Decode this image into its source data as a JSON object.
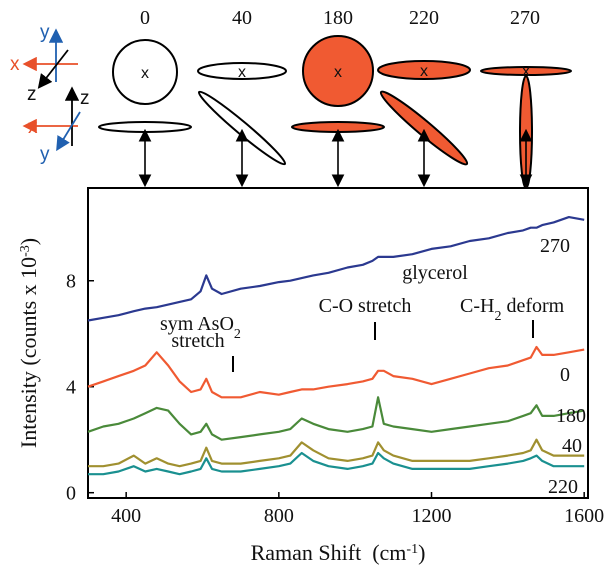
{
  "chart_data": {
    "type": "line",
    "x_label": [
      "Raman Shift  (cm",
      "-1",
      ")"
    ],
    "y_label": [
      "Intensity (counts x 10",
      "-3",
      ")"
    ],
    "x": [
      300,
      340,
      380,
      420,
      450,
      480,
      510,
      540,
      570,
      595,
      610,
      625,
      650,
      700,
      750,
      800,
      830,
      860,
      890,
      930,
      980,
      1020,
      1045,
      1060,
      1075,
      1100,
      1150,
      1200,
      1250,
      1300,
      1350,
      1400,
      1440,
      1460,
      1475,
      1490,
      1520,
      1560,
      1600
    ],
    "series": [
      {
        "name": "270",
        "color": "#2b3990",
        "values": [
          6.5,
          6.6,
          6.7,
          6.85,
          6.95,
          7.0,
          7.1,
          7.2,
          7.3,
          7.6,
          8.2,
          7.7,
          7.5,
          7.7,
          7.8,
          7.95,
          8.0,
          8.1,
          8.2,
          8.3,
          8.5,
          8.6,
          8.75,
          8.9,
          8.9,
          8.9,
          9.0,
          9.2,
          9.3,
          9.5,
          9.6,
          9.8,
          9.9,
          10.0,
          10.0,
          10.1,
          10.2,
          10.4,
          10.3
        ]
      },
      {
        "name": "0",
        "color": "#f05a32",
        "values": [
          4.0,
          4.2,
          4.4,
          4.6,
          4.8,
          5.3,
          4.8,
          4.2,
          3.8,
          3.9,
          4.3,
          3.8,
          3.6,
          3.6,
          3.8,
          3.7,
          3.8,
          3.9,
          3.9,
          4.0,
          4.1,
          4.2,
          4.3,
          4.6,
          4.6,
          4.4,
          4.3,
          4.1,
          4.3,
          4.5,
          4.7,
          4.8,
          5.0,
          5.1,
          5.5,
          5.2,
          5.2,
          5.3,
          5.4
        ]
      },
      {
        "name": "180",
        "color": "#4a8a3a",
        "values": [
          2.3,
          2.5,
          2.6,
          2.8,
          3.0,
          3.2,
          3.1,
          2.6,
          2.2,
          2.3,
          2.6,
          2.2,
          2.0,
          2.1,
          2.2,
          2.3,
          2.4,
          2.8,
          2.6,
          2.4,
          2.3,
          2.4,
          2.5,
          3.6,
          2.6,
          2.5,
          2.4,
          2.3,
          2.4,
          2.5,
          2.6,
          2.7,
          2.9,
          3.0,
          3.3,
          2.9,
          2.9,
          3.0,
          3.1
        ]
      },
      {
        "name": "40",
        "color": "#a09030",
        "values": [
          1.0,
          1.0,
          1.1,
          1.4,
          1.1,
          1.3,
          1.1,
          1.0,
          1.1,
          1.2,
          1.7,
          1.2,
          1.1,
          1.1,
          1.2,
          1.3,
          1.4,
          1.9,
          1.6,
          1.3,
          1.2,
          1.3,
          1.4,
          1.9,
          1.6,
          1.4,
          1.2,
          1.2,
          1.2,
          1.2,
          1.3,
          1.4,
          1.5,
          1.6,
          2.0,
          1.6,
          1.4,
          1.4,
          1.4
        ]
      },
      {
        "name": "220",
        "color": "#1a9090",
        "values": [
          0.7,
          0.7,
          0.8,
          1.0,
          0.8,
          0.9,
          0.8,
          0.7,
          0.8,
          0.9,
          1.3,
          0.9,
          0.8,
          0.8,
          0.9,
          1.0,
          1.1,
          1.5,
          1.2,
          1.0,
          0.9,
          1.0,
          1.1,
          1.5,
          1.3,
          1.1,
          0.9,
          0.9,
          0.9,
          0.9,
          1.0,
          1.1,
          1.2,
          1.3,
          1.4,
          1.2,
          1.0,
          1.0,
          1.0
        ]
      }
    ],
    "xlim": [
      300,
      1610
    ],
    "ylim": [
      -0.2,
      11.5
    ],
    "xticks": [
      400,
      800,
      1200,
      1600
    ],
    "yticks": [
      0,
      4,
      8
    ],
    "annotations": [
      {
        "lines": [
          [
            "sym AsO",
            "2"
          ],
          [
            "stretch"
          ]
        ]
      },
      {
        "lines": [
          [
            "C-O stretch"
          ]
        ]
      },
      {
        "lines": [
          [
            "glycerol"
          ]
        ]
      },
      {
        "lines": [
          [
            "C-H",
            "2",
            " deform"
          ]
        ]
      }
    ]
  },
  "diagram": {
    "axis_labels": [
      "x",
      "y",
      "z"
    ]
  }
}
